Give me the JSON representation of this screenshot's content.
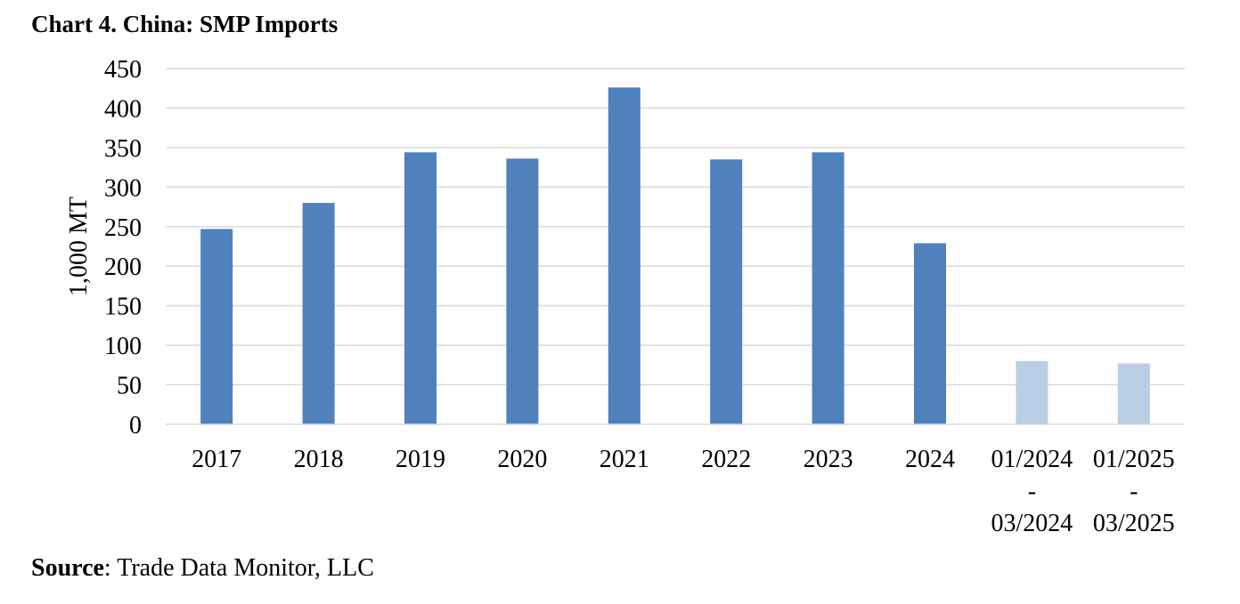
{
  "chart_data": {
    "type": "bar",
    "title": "Chart 4. China: SMP Imports",
    "ylabel": "1,000 MT",
    "xlabel": "",
    "ylim": [
      0,
      450
    ],
    "yticks": [
      "0",
      "50",
      "100",
      "150",
      "200",
      "250",
      "300",
      "350",
      "400",
      "450"
    ],
    "grid": true,
    "categories": [
      [
        "2017"
      ],
      [
        "2018"
      ],
      [
        "2019"
      ],
      [
        "2020"
      ],
      [
        "2021"
      ],
      [
        "2022"
      ],
      [
        "2023"
      ],
      [
        "2024"
      ],
      [
        "01/2024",
        "-",
        "03/2024"
      ],
      [
        "01/2025",
        "-",
        "03/2025"
      ]
    ],
    "values": [
      247,
      280,
      344,
      336,
      426,
      335,
      344,
      229,
      80,
      77
    ],
    "bar_colors": [
      "#4f81bd",
      "#4f81bd",
      "#4f81bd",
      "#4f81bd",
      "#4f81bd",
      "#4f81bd",
      "#4f81bd",
      "#4f81bd",
      "#b9cde5",
      "#b9cde5"
    ],
    "grid_color": "#d9d9d9"
  },
  "source": {
    "label": "Source",
    "text": ": Trade Data Monitor, LLC"
  }
}
